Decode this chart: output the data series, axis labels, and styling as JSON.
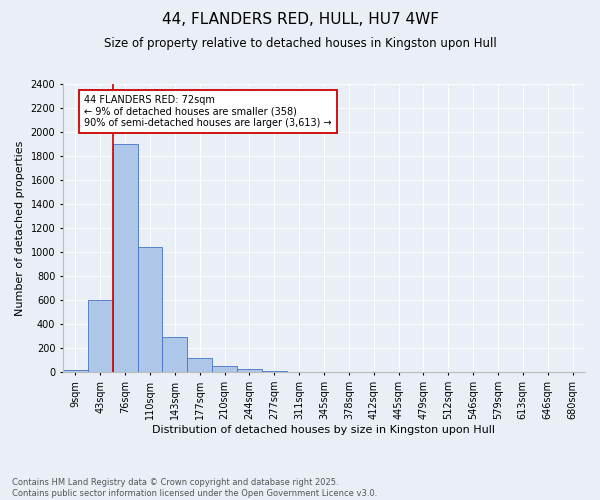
{
  "title": "44, FLANDERS RED, HULL, HU7 4WF",
  "subtitle": "Size of property relative to detached houses in Kingston upon Hull",
  "xlabel": "Distribution of detached houses by size in Kingston upon Hull",
  "ylabel": "Number of detached properties",
  "footnote": "Contains HM Land Registry data © Crown copyright and database right 2025.\nContains public sector information licensed under the Open Government Licence v3.0.",
  "bins": [
    "9sqm",
    "43sqm",
    "76sqm",
    "110sqm",
    "143sqm",
    "177sqm",
    "210sqm",
    "244sqm",
    "277sqm",
    "311sqm",
    "345sqm",
    "378sqm",
    "412sqm",
    "445sqm",
    "479sqm",
    "512sqm",
    "546sqm",
    "579sqm",
    "613sqm",
    "646sqm",
    "680sqm"
  ],
  "values": [
    20,
    600,
    1900,
    1040,
    295,
    115,
    55,
    30,
    8,
    3,
    1,
    0,
    0,
    0,
    0,
    0,
    0,
    0,
    0,
    0
  ],
  "bar_color": "#aec6e8",
  "bar_edge_color": "#4472c4",
  "vline_x_index": 2,
  "vline_color": "#cc0000",
  "annotation_text": "44 FLANDERS RED: 72sqm\n← 9% of detached houses are smaller (358)\n90% of semi-detached houses are larger (3,613) →",
  "annotation_box_color": "#cc0000",
  "annotation_text_color": "#000000",
  "ylim": [
    0,
    2400
  ],
  "yticks": [
    0,
    200,
    400,
    600,
    800,
    1000,
    1200,
    1400,
    1600,
    1800,
    2000,
    2200,
    2400
  ],
  "bg_color": "#eaeff7",
  "plot_bg_color": "#eaeff7",
  "grid_color": "#ffffff",
  "title_fontsize": 11,
  "subtitle_fontsize": 8.5,
  "label_fontsize": 8,
  "tick_fontsize": 7,
  "annot_fontsize": 7
}
